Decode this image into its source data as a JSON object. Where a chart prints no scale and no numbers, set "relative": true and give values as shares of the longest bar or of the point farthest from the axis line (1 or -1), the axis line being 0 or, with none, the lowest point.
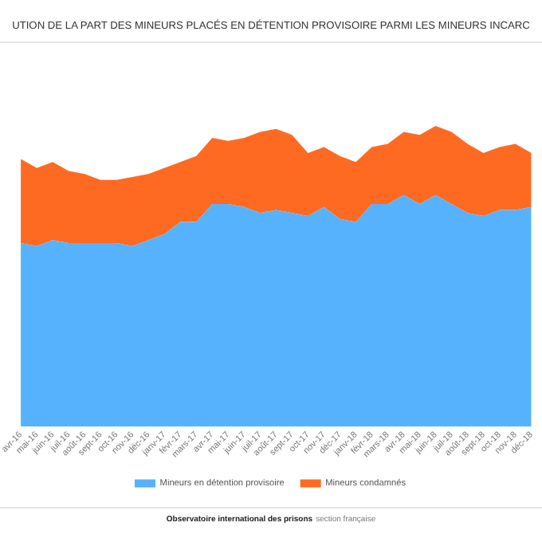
{
  "chart_data": {
    "type": "area",
    "stacked": true,
    "relative": true,
    "title": "UTION DE LA PART DES MINEURS PLACÉS EN DÉTENTION PROVISOIRE PARMI LES MINEURS INCARC",
    "categories": [
      "avr-16",
      "mai-16",
      "juin-16",
      "juil-16",
      "août-16",
      "sept-16",
      "oct-16",
      "nov-16",
      "déc-16",
      "janv-17",
      "févr-17",
      "mars-17",
      "avr-17",
      "mai-17",
      "juin-17",
      "juil-17",
      "août-17",
      "sept-17",
      "oct-17",
      "nov-17",
      "déc-17",
      "janv-18",
      "févr-18",
      "mars-18",
      "avr-18",
      "mai-18",
      "juin-18",
      "juil-18",
      "août-18",
      "sept-18",
      "oct-18",
      "nov-18",
      "déc-18"
    ],
    "series": [
      {
        "name": "Mineurs en détention provisoire",
        "color": "#56b2fd",
        "values": [
          0.61,
          0.6,
          0.62,
          0.61,
          0.61,
          0.61,
          0.61,
          0.6,
          0.62,
          0.64,
          0.68,
          0.68,
          0.74,
          0.74,
          0.73,
          0.71,
          0.72,
          0.71,
          0.7,
          0.73,
          0.69,
          0.68,
          0.74,
          0.74,
          0.77,
          0.74,
          0.77,
          0.74,
          0.71,
          0.7,
          0.72,
          0.72,
          0.73
        ]
      },
      {
        "name": "Mineurs condamnés",
        "color": "#ff6a22",
        "values": [
          0.28,
          0.26,
          0.26,
          0.24,
          0.23,
          0.21,
          0.21,
          0.23,
          0.22,
          0.22,
          0.2,
          0.22,
          0.22,
          0.21,
          0.23,
          0.27,
          0.27,
          0.26,
          0.21,
          0.2,
          0.21,
          0.2,
          0.19,
          0.2,
          0.21,
          0.23,
          0.23,
          0.24,
          0.23,
          0.21,
          0.21,
          0.22,
          0.18
        ]
      }
    ],
    "legend": "bottom",
    "annotations": [
      "Observatoire international des prisons",
      "section française"
    ]
  }
}
